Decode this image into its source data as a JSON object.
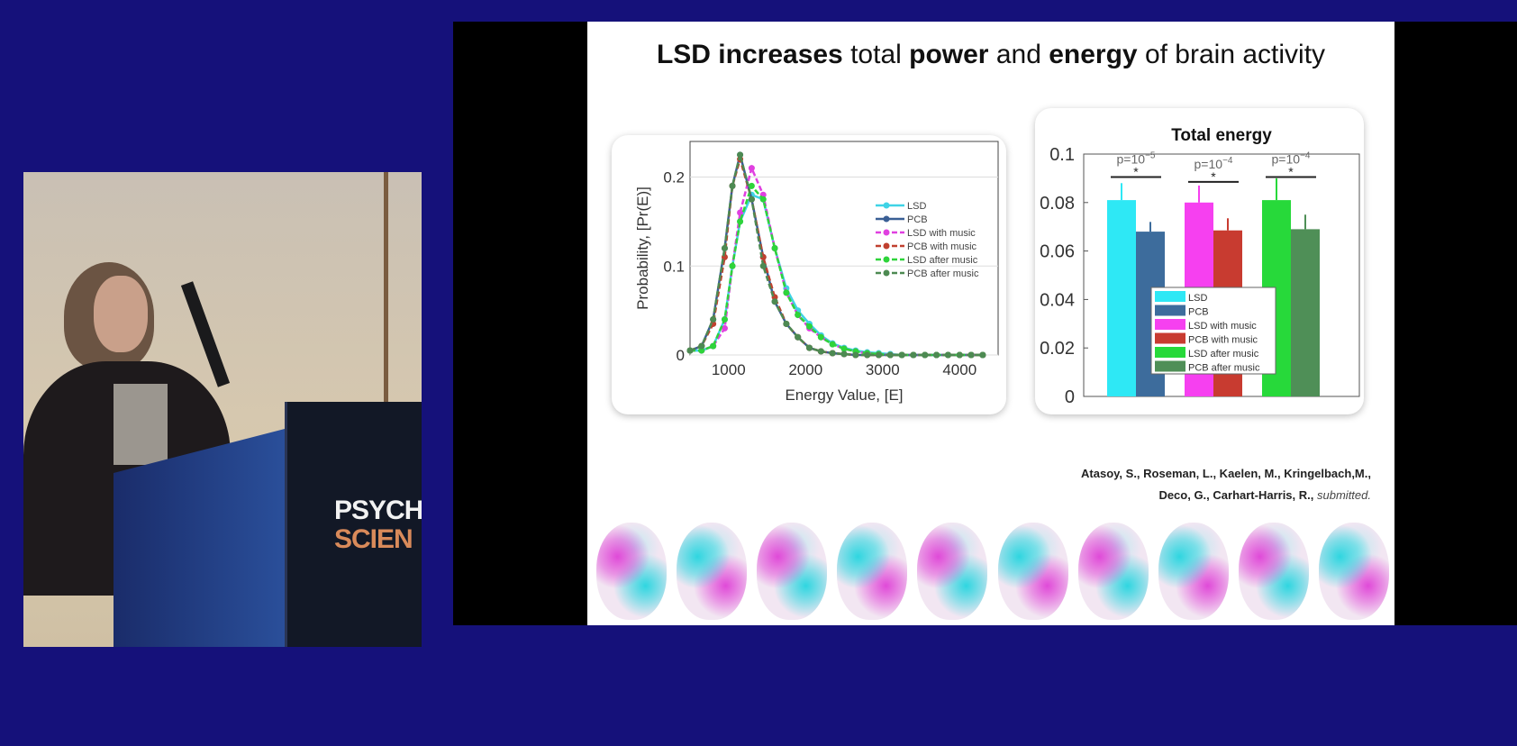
{
  "video": {
    "podium_logo": [
      "PSYCH",
      "SCIEN"
    ]
  },
  "slide": {
    "title_parts": [
      {
        "text": "LSD increases",
        "bold": true
      },
      {
        "text": " total ",
        "bold": false
      },
      {
        "text": "power",
        "bold": true
      },
      {
        "text": " and ",
        "bold": false
      },
      {
        "text": "energy",
        "bold": true
      },
      {
        "text": " of brain activity",
        "bold": false
      }
    ],
    "citation_line1": "Atasoy, S., Roseman, L., Kaelen, M., Kringelbach,M.,",
    "citation_line2": "Deco, G., Carhart-Harris, R.,",
    "citation_status": "submitted.",
    "brain_maps": 10
  },
  "chart_data": [
    {
      "type": "line",
      "xlabel": "Energy Value, [E]",
      "ylabel": "Probability, [Pr(E)]",
      "xlim": [
        500,
        4500
      ],
      "ylim": [
        0,
        0.24
      ],
      "xticks": [
        "1000",
        "2000",
        "3000",
        "4000"
      ],
      "yticks": [
        "0",
        "0.1",
        "0.2"
      ],
      "grid": true,
      "legend": "right",
      "x": [
        500,
        650,
        800,
        950,
        1050,
        1150,
        1300,
        1450,
        1600,
        1750,
        1900,
        2050,
        2200,
        2350,
        2500,
        2650,
        2800,
        2950,
        3100,
        3250,
        3400,
        3550,
        3700,
        3850,
        4000,
        4150,
        4300
      ],
      "series": [
        {
          "name": "LSD",
          "color": "#3fd3e6",
          "dash": false,
          "values": [
            0.005,
            0.005,
            0.01,
            0.04,
            0.1,
            0.15,
            0.18,
            0.175,
            0.12,
            0.075,
            0.05,
            0.035,
            0.022,
            0.013,
            0.008,
            0.005,
            0.003,
            0.002,
            0.001,
            0,
            0,
            0,
            0,
            0,
            0,
            0,
            0
          ]
        },
        {
          "name": "PCB",
          "color": "#3a5f95",
          "dash": false,
          "values": [
            0.005,
            0.01,
            0.04,
            0.12,
            0.19,
            0.225,
            0.175,
            0.11,
            0.06,
            0.035,
            0.02,
            0.008,
            0.004,
            0.002,
            0.001,
            0,
            0,
            0,
            0,
            0,
            0,
            0,
            0,
            0,
            0,
            0,
            0
          ]
        },
        {
          "name": "LSD with music",
          "color": "#e040e0",
          "dash": true,
          "values": [
            0.005,
            0.005,
            0.01,
            0.03,
            0.1,
            0.16,
            0.21,
            0.18,
            0.12,
            0.07,
            0.045,
            0.03,
            0.02,
            0.012,
            0.007,
            0.004,
            0.002,
            0.001,
            0,
            0,
            0,
            0,
            0,
            0,
            0,
            0,
            0
          ]
        },
        {
          "name": "PCB with music",
          "color": "#c0402f",
          "dash": true,
          "values": [
            0.005,
            0.01,
            0.035,
            0.11,
            0.19,
            0.22,
            0.175,
            0.11,
            0.065,
            0.035,
            0.02,
            0.008,
            0.004,
            0.002,
            0.001,
            0,
            0,
            0,
            0,
            0,
            0,
            0,
            0,
            0,
            0,
            0,
            0
          ]
        },
        {
          "name": "LSD after music",
          "color": "#2ed43a",
          "dash": true,
          "values": [
            0.005,
            0.005,
            0.01,
            0.04,
            0.1,
            0.15,
            0.19,
            0.175,
            0.12,
            0.07,
            0.045,
            0.032,
            0.02,
            0.012,
            0.007,
            0.004,
            0.002,
            0.001,
            0,
            0,
            0,
            0,
            0,
            0,
            0,
            0,
            0
          ]
        },
        {
          "name": "PCB after music",
          "color": "#4d8a52",
          "dash": true,
          "values": [
            0.005,
            0.01,
            0.04,
            0.12,
            0.19,
            0.225,
            0.175,
            0.1,
            0.06,
            0.035,
            0.02,
            0.008,
            0.004,
            0.002,
            0.001,
            0,
            0,
            0,
            0,
            0,
            0,
            0,
            0,
            0,
            0,
            0,
            0
          ]
        }
      ]
    },
    {
      "type": "bar",
      "title": "Total energy",
      "ylim": [
        0,
        0.1
      ],
      "yticks": [
        "0",
        "0.02",
        "0.04",
        "0.06",
        "0.08",
        "0.1"
      ],
      "legend": "bottom-center",
      "series": [
        {
          "name": "LSD",
          "color": "#2ee8f5",
          "value": 0.081,
          "error": 0.007
        },
        {
          "name": "PCB",
          "color": "#3d6c9c",
          "value": 0.068,
          "error": 0.004
        },
        {
          "name": "LSD with music",
          "color": "#f640f0",
          "value": 0.08,
          "error": 0.007
        },
        {
          "name": "PCB with music",
          "color": "#c83b30",
          "value": 0.0685,
          "error": 0.005
        },
        {
          "name": "LSD after music",
          "color": "#27d93a",
          "value": 0.081,
          "error": 0.009
        },
        {
          "name": "PCB after music",
          "color": "#4f8f57",
          "value": 0.069,
          "error": 0.006
        }
      ],
      "annotations": [
        {
          "text": "p=10",
          "exp": "−5"
        },
        {
          "text": "p=10",
          "exp": "−4"
        },
        {
          "text": "p=10",
          "exp": "−4"
        }
      ],
      "significance_mark": "*"
    }
  ]
}
